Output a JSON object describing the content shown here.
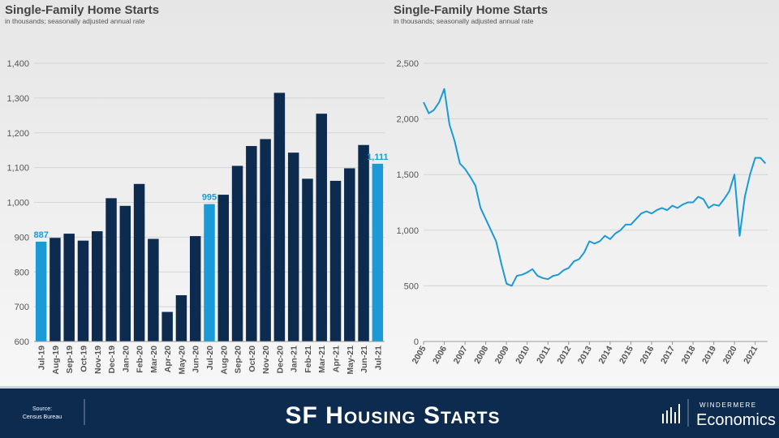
{
  "chart_data": [
    {
      "type": "bar",
      "title": "Single-Family Home Starts",
      "subtitle": "in thousands; seasonally adjusted annual rate",
      "categories": [
        "Jul-19",
        "Aug-19",
        "Sep-19",
        "Oct-19",
        "Nov-19",
        "Dec-19",
        "Jan-20",
        "Feb-20",
        "Mar-20",
        "Apr-20",
        "May-20",
        "Jun-20",
        "Jul-20",
        "Aug-20",
        "Sep-20",
        "Oct-20",
        "Nov-20",
        "Dec-20",
        "Jan-21",
        "Feb-21",
        "Mar-21",
        "Apr-21",
        "May-21",
        "Jun-21",
        "Jul-21"
      ],
      "values": [
        887,
        898,
        910,
        890,
        917,
        1012,
        990,
        1053,
        895,
        685,
        733,
        903,
        995,
        1022,
        1105,
        1162,
        1182,
        1315,
        1143,
        1068,
        1255,
        1062,
        1098,
        1165,
        1111
      ],
      "value_labels": [
        "887",
        null,
        null,
        null,
        null,
        null,
        null,
        null,
        null,
        null,
        null,
        null,
        "995",
        null,
        null,
        null,
        null,
        null,
        null,
        null,
        null,
        null,
        null,
        null,
        "1,111"
      ],
      "colors": [
        "#1a9ad6",
        "#0d2a4f",
        "#0d2a4f",
        "#0d2a4f",
        "#0d2a4f",
        "#0d2a4f",
        "#0d2a4f",
        "#0d2a4f",
        "#0d2a4f",
        "#0d2a4f",
        "#0d2a4f",
        "#0d2a4f",
        "#1a9ad6",
        "#0d2a4f",
        "#0d2a4f",
        "#0d2a4f",
        "#0d2a4f",
        "#0d2a4f",
        "#0d2a4f",
        "#0d2a4f",
        "#0d2a4f",
        "#0d2a4f",
        "#0d2a4f",
        "#0d2a4f",
        "#1a9ad6"
      ],
      "ylim": [
        600,
        1400
      ],
      "yticks": [
        600,
        700,
        800,
        900,
        {
          "value": 1000,
          "label": "1,000"
        },
        {
          "value": 1100,
          "label": "1,100"
        },
        {
          "value": 1200,
          "label": "1,200"
        },
        {
          "value": 1300,
          "label": "1,300"
        },
        {
          "value": 1400,
          "label": "1,400"
        }
      ],
      "grid": true
    },
    {
      "type": "line",
      "title": "Single-Family Home Starts",
      "subtitle": "in thousands; seasonally adjusted annual rate",
      "x": [
        2005,
        2005.25,
        2005.5,
        2005.75,
        2006,
        2006.25,
        2006.5,
        2006.75,
        2007,
        2007.25,
        2007.5,
        2007.75,
        2008,
        2008.25,
        2008.5,
        2008.75,
        2009,
        2009.25,
        2009.5,
        2009.75,
        2010,
        2010.25,
        2010.5,
        2010.75,
        2011,
        2011.25,
        2011.5,
        2011.75,
        2012,
        2012.25,
        2012.5,
        2012.75,
        2013,
        2013.25,
        2013.5,
        2013.75,
        2014,
        2014.25,
        2014.5,
        2014.75,
        2015,
        2015.25,
        2015.5,
        2015.75,
        2016,
        2016.25,
        2016.5,
        2016.75,
        2017,
        2017.25,
        2017.5,
        2017.75,
        2018,
        2018.25,
        2018.5,
        2018.75,
        2019,
        2019.25,
        2019.5,
        2019.75,
        2020,
        2020.25,
        2020.5,
        2020.75,
        2021,
        2021.25,
        2021.5
      ],
      "values": [
        2150,
        2050,
        2080,
        2150,
        2270,
        1950,
        1800,
        1600,
        1550,
        1480,
        1400,
        1200,
        1100,
        1000,
        900,
        700,
        520,
        500,
        590,
        600,
        620,
        650,
        590,
        570,
        560,
        590,
        600,
        640,
        660,
        720,
        740,
        800,
        900,
        880,
        900,
        950,
        920,
        970,
        1000,
        1050,
        1050,
        1100,
        1150,
        1170,
        1150,
        1180,
        1200,
        1180,
        1220,
        1200,
        1230,
        1250,
        1250,
        1300,
        1280,
        1200,
        1230,
        1220,
        1280,
        1350,
        1500,
        950,
        1300,
        1500,
        1650,
        1650,
        1600
      ],
      "color": "#1a9ad6",
      "xlim": [
        2005,
        2021.6
      ],
      "xticks": [
        2005,
        2006,
        2007,
        2008,
        2009,
        2010,
        2011,
        2012,
        2013,
        2014,
        2015,
        2016,
        2017,
        2018,
        2019,
        2020,
        2021
      ],
      "ylim": [
        0,
        2500
      ],
      "yticks": [
        0,
        500,
        {
          "value": 1000,
          "label": "1,000"
        },
        {
          "value": 1500,
          "label": "1,500"
        },
        {
          "value": 2000,
          "label": "2,000"
        },
        {
          "value": 2500,
          "label": "2,500"
        }
      ],
      "grid": true
    }
  ],
  "footer": {
    "source": "Source:",
    "source_name": "Census Bureau",
    "title": "SF Housing Starts",
    "brand": "WINDERMERE",
    "brand_sub": "Economics"
  }
}
